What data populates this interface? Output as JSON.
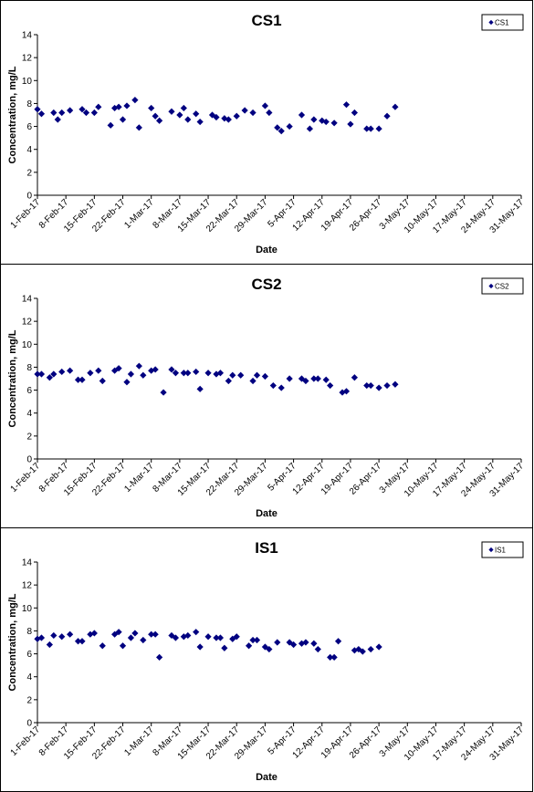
{
  "chart_data": [
    {
      "type": "scatter",
      "title": "CS1",
      "xlabel": "Date",
      "ylabel": "Concentration, mg/L",
      "ylim": [
        0,
        14
      ],
      "yticks": [
        0,
        2,
        4,
        6,
        8,
        10,
        12,
        14
      ],
      "xlim": [
        "2017-02-01",
        "2017-05-31"
      ],
      "xtick_labels": [
        "1-Feb-17",
        "8-Feb-17",
        "15-Feb-17",
        "22-Feb-17",
        "1-Mar-17",
        "8-Mar-17",
        "15-Mar-17",
        "22-Mar-17",
        "29-Mar-17",
        "5-Apr-17",
        "12-Apr-17",
        "19-Apr-17",
        "26-Apr-17",
        "3-May-17",
        "10-May-17",
        "17-May-17",
        "24-May-17",
        "31-May-17"
      ],
      "grid": false,
      "legend": "top-right",
      "marker_color": "#000080",
      "series": [
        {
          "name": "CS1",
          "points": [
            [
              "2017-02-01",
              7.5
            ],
            [
              "2017-02-02",
              7.1
            ],
            [
              "2017-02-05",
              7.2
            ],
            [
              "2017-02-06",
              6.6
            ],
            [
              "2017-02-07",
              7.2
            ],
            [
              "2017-02-09",
              7.4
            ],
            [
              "2017-02-12",
              7.5
            ],
            [
              "2017-02-13",
              7.2
            ],
            [
              "2017-02-15",
              7.2
            ],
            [
              "2017-02-16",
              7.7
            ],
            [
              "2017-02-19",
              6.1
            ],
            [
              "2017-02-20",
              7.6
            ],
            [
              "2017-02-21",
              7.7
            ],
            [
              "2017-02-22",
              6.6
            ],
            [
              "2017-02-23",
              7.8
            ],
            [
              "2017-02-25",
              8.3
            ],
            [
              "2017-02-26",
              5.9
            ],
            [
              "2017-03-01",
              7.6
            ],
            [
              "2017-03-02",
              6.9
            ],
            [
              "2017-03-03",
              6.5
            ],
            [
              "2017-03-06",
              7.3
            ],
            [
              "2017-03-08",
              7.0
            ],
            [
              "2017-03-09",
              7.6
            ],
            [
              "2017-03-10",
              6.6
            ],
            [
              "2017-03-12",
              7.1
            ],
            [
              "2017-03-13",
              6.4
            ],
            [
              "2017-03-16",
              7.0
            ],
            [
              "2017-03-17",
              6.8
            ],
            [
              "2017-03-19",
              6.7
            ],
            [
              "2017-03-20",
              6.6
            ],
            [
              "2017-03-22",
              6.9
            ],
            [
              "2017-03-24",
              7.4
            ],
            [
              "2017-03-26",
              7.2
            ],
            [
              "2017-03-29",
              7.8
            ],
            [
              "2017-03-30",
              7.2
            ],
            [
              "2017-04-01",
              5.9
            ],
            [
              "2017-04-02",
              5.6
            ],
            [
              "2017-04-04",
              6.0
            ],
            [
              "2017-04-07",
              7.0
            ],
            [
              "2017-04-09",
              5.8
            ],
            [
              "2017-04-10",
              6.6
            ],
            [
              "2017-04-12",
              6.5
            ],
            [
              "2017-04-13",
              6.4
            ],
            [
              "2017-04-15",
              6.3
            ],
            [
              "2017-04-18",
              7.9
            ],
            [
              "2017-04-19",
              6.2
            ],
            [
              "2017-04-20",
              7.2
            ],
            [
              "2017-04-23",
              5.8
            ],
            [
              "2017-04-24",
              5.8
            ],
            [
              "2017-04-26",
              5.8
            ],
            [
              "2017-04-28",
              6.9
            ],
            [
              "2017-04-30",
              7.7
            ]
          ]
        }
      ]
    },
    {
      "type": "scatter",
      "title": "CS2",
      "xlabel": "Date",
      "ylabel": "Concentration, mg/L",
      "ylim": [
        0,
        14
      ],
      "yticks": [
        0,
        2,
        4,
        6,
        8,
        10,
        12,
        14
      ],
      "xlim": [
        "2017-02-01",
        "2017-05-31"
      ],
      "xtick_labels": [
        "1-Feb-17",
        "8-Feb-17",
        "15-Feb-17",
        "22-Feb-17",
        "1-Mar-17",
        "8-Mar-17",
        "15-Mar-17",
        "22-Mar-17",
        "29-Mar-17",
        "5-Apr-17",
        "12-Apr-17",
        "19-Apr-17",
        "26-Apr-17",
        "3-May-17",
        "10-May-17",
        "17-May-17",
        "24-May-17",
        "31-May-17"
      ],
      "grid": false,
      "legend": "top-right",
      "marker_color": "#000080",
      "series": [
        {
          "name": "CS2",
          "points": [
            [
              "2017-02-01",
              7.4
            ],
            [
              "2017-02-02",
              7.4
            ],
            [
              "2017-02-04",
              7.1
            ],
            [
              "2017-02-05",
              7.4
            ],
            [
              "2017-02-07",
              7.6
            ],
            [
              "2017-02-09",
              7.7
            ],
            [
              "2017-02-11",
              6.9
            ],
            [
              "2017-02-12",
              6.9
            ],
            [
              "2017-02-14",
              7.5
            ],
            [
              "2017-02-16",
              7.7
            ],
            [
              "2017-02-17",
              6.8
            ],
            [
              "2017-02-20",
              7.7
            ],
            [
              "2017-02-21",
              7.9
            ],
            [
              "2017-02-23",
              6.7
            ],
            [
              "2017-02-24",
              7.4
            ],
            [
              "2017-02-26",
              8.1
            ],
            [
              "2017-02-27",
              7.3
            ],
            [
              "2017-03-01",
              7.7
            ],
            [
              "2017-03-02",
              7.8
            ],
            [
              "2017-03-04",
              5.8
            ],
            [
              "2017-03-06",
              7.8
            ],
            [
              "2017-03-07",
              7.5
            ],
            [
              "2017-03-09",
              7.5
            ],
            [
              "2017-03-10",
              7.5
            ],
            [
              "2017-03-12",
              7.6
            ],
            [
              "2017-03-13",
              6.1
            ],
            [
              "2017-03-15",
              7.5
            ],
            [
              "2017-03-17",
              7.4
            ],
            [
              "2017-03-18",
              7.5
            ],
            [
              "2017-03-20",
              6.8
            ],
            [
              "2017-03-21",
              7.3
            ],
            [
              "2017-03-23",
              7.3
            ],
            [
              "2017-03-26",
              6.8
            ],
            [
              "2017-03-27",
              7.3
            ],
            [
              "2017-03-29",
              7.2
            ],
            [
              "2017-03-31",
              6.4
            ],
            [
              "2017-04-02",
              6.2
            ],
            [
              "2017-04-04",
              7.0
            ],
            [
              "2017-04-07",
              7.0
            ],
            [
              "2017-04-08",
              6.8
            ],
            [
              "2017-04-10",
              7.0
            ],
            [
              "2017-04-11",
              7.0
            ],
            [
              "2017-04-13",
              6.9
            ],
            [
              "2017-04-14",
              6.4
            ],
            [
              "2017-04-17",
              5.8
            ],
            [
              "2017-04-18",
              5.9
            ],
            [
              "2017-04-20",
              7.1
            ],
            [
              "2017-04-23",
              6.4
            ],
            [
              "2017-04-24",
              6.4
            ],
            [
              "2017-04-26",
              6.2
            ],
            [
              "2017-04-28",
              6.4
            ],
            [
              "2017-04-30",
              6.5
            ]
          ]
        }
      ]
    },
    {
      "type": "scatter",
      "title": "IS1",
      "xlabel": "Date",
      "ylabel": "Concentration, mg/L",
      "ylim": [
        0,
        14
      ],
      "yticks": [
        0,
        2,
        4,
        6,
        8,
        10,
        12,
        14
      ],
      "xlim": [
        "2017-02-01",
        "2017-05-31"
      ],
      "xtick_labels": [
        "1-Feb-17",
        "8-Feb-17",
        "15-Feb-17",
        "22-Feb-17",
        "1-Mar-17",
        "8-Mar-17",
        "15-Mar-17",
        "22-Mar-17",
        "29-Mar-17",
        "5-Apr-17",
        "12-Apr-17",
        "19-Apr-17",
        "26-Apr-17",
        "3-May-17",
        "10-May-17",
        "17-May-17",
        "24-May-17",
        "31-May-17"
      ],
      "grid": false,
      "legend": "top-right",
      "marker_color": "#000080",
      "series": [
        {
          "name": "IS1",
          "points": [
            [
              "2017-02-01",
              7.3
            ],
            [
              "2017-02-02",
              7.4
            ],
            [
              "2017-02-04",
              6.8
            ],
            [
              "2017-02-05",
              7.6
            ],
            [
              "2017-02-07",
              7.5
            ],
            [
              "2017-02-09",
              7.7
            ],
            [
              "2017-02-11",
              7.1
            ],
            [
              "2017-02-12",
              7.1
            ],
            [
              "2017-02-14",
              7.7
            ],
            [
              "2017-02-15",
              7.8
            ],
            [
              "2017-02-17",
              6.7
            ],
            [
              "2017-02-20",
              7.7
            ],
            [
              "2017-02-21",
              7.9
            ],
            [
              "2017-02-22",
              6.7
            ],
            [
              "2017-02-24",
              7.4
            ],
            [
              "2017-02-25",
              7.8
            ],
            [
              "2017-02-27",
              7.2
            ],
            [
              "2017-03-01",
              7.7
            ],
            [
              "2017-03-02",
              7.7
            ],
            [
              "2017-03-03",
              5.7
            ],
            [
              "2017-03-06",
              7.6
            ],
            [
              "2017-03-07",
              7.4
            ],
            [
              "2017-03-09",
              7.5
            ],
            [
              "2017-03-10",
              7.6
            ],
            [
              "2017-03-12",
              7.9
            ],
            [
              "2017-03-13",
              6.6
            ],
            [
              "2017-03-15",
              7.5
            ],
            [
              "2017-03-17",
              7.4
            ],
            [
              "2017-03-18",
              7.4
            ],
            [
              "2017-03-19",
              6.5
            ],
            [
              "2017-03-21",
              7.3
            ],
            [
              "2017-03-22",
              7.5
            ],
            [
              "2017-03-25",
              6.7
            ],
            [
              "2017-03-26",
              7.2
            ],
            [
              "2017-03-27",
              7.2
            ],
            [
              "2017-03-29",
              6.6
            ],
            [
              "2017-03-30",
              6.4
            ],
            [
              "2017-04-01",
              7.0
            ],
            [
              "2017-04-04",
              7.0
            ],
            [
              "2017-04-05",
              6.8
            ],
            [
              "2017-04-07",
              6.9
            ],
            [
              "2017-04-08",
              7.0
            ],
            [
              "2017-04-10",
              6.9
            ],
            [
              "2017-04-11",
              6.4
            ],
            [
              "2017-04-14",
              5.7
            ],
            [
              "2017-04-15",
              5.7
            ],
            [
              "2017-04-16",
              7.1
            ],
            [
              "2017-04-20",
              6.3
            ],
            [
              "2017-04-21",
              6.4
            ],
            [
              "2017-04-22",
              6.2
            ],
            [
              "2017-04-24",
              6.4
            ],
            [
              "2017-04-26",
              6.6
            ]
          ]
        }
      ]
    }
  ]
}
